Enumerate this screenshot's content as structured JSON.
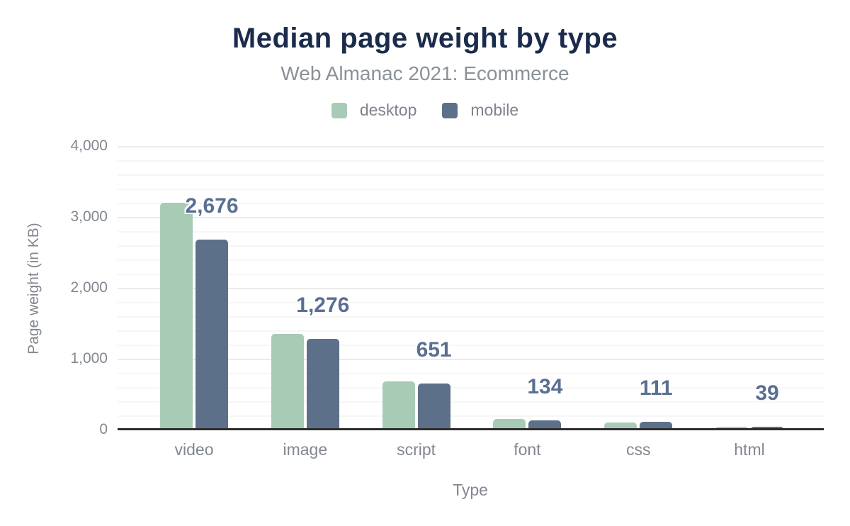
{
  "chart": {
    "title": "Median page weight by type",
    "subtitle": "Web Almanac 2021: Ecommerce",
    "x_axis_title": "Type",
    "y_axis_title": "Page weight (in KB)",
    "y_ticks": [
      "4,000",
      "3,000",
      "2,000",
      "1,000",
      "0"
    ],
    "legend": [
      {
        "label": "desktop",
        "color": "#a8cbb6"
      },
      {
        "label": "mobile",
        "color": "#5d7089"
      }
    ],
    "colors": {
      "title": "#1b2b4b",
      "subtitle_gray": "#8b9199",
      "axis_gray": "#82878f",
      "data_label": "#5a6f92",
      "desktop_bar": "#a8cbb6",
      "mobile_bar": "#5d7089",
      "axis_line": "#2d2d2d",
      "gridline_major": "#ebebeb",
      "gridline_minor": "#f6f6f6"
    }
  },
  "chart_data": {
    "type": "bar",
    "title": "Median page weight by type",
    "subtitle": "Web Almanac 2021: Ecommerce",
    "categories": [
      "video",
      "image",
      "script",
      "font",
      "css",
      "html"
    ],
    "series": [
      {
        "name": "desktop",
        "color": "#a8cbb6",
        "values": [
          3200,
          1350,
          680,
          155,
          98,
          43
        ]
      },
      {
        "name": "mobile",
        "color": "#5d7089",
        "values": [
          2676,
          1276,
          651,
          134,
          111,
          39
        ]
      }
    ],
    "data_labels": {
      "series": "mobile",
      "values": [
        "2,676",
        "1,276",
        "651",
        "134",
        "111",
        "39"
      ]
    },
    "xlabel": "Type",
    "ylabel": "Page weight (in KB)",
    "ylim": [
      0,
      4000
    ],
    "y_major_step": 1000,
    "y_minor_step": 200,
    "grid": true,
    "legend_position": "top"
  }
}
